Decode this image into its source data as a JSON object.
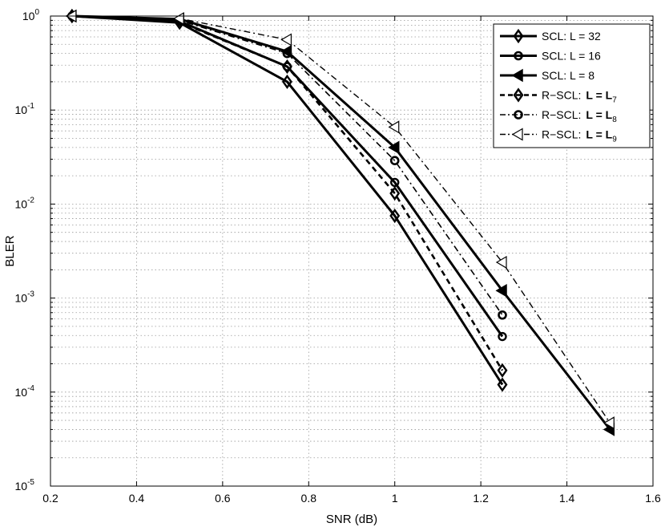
{
  "chart_data": {
    "type": "line",
    "title": "",
    "xlabel": "SNR (dB)",
    "ylabel": "BLER",
    "xlim": [
      0.2,
      1.6
    ],
    "ylim": [
      1e-05,
      1
    ],
    "yscale": "log",
    "grid": true,
    "legend_position": "top-right",
    "x_ticks": [
      "0.2",
      "0.4",
      "0.6",
      "0.8",
      "1",
      "1.2",
      "1.4",
      "1.6"
    ],
    "y_ticks": [
      {
        "base": "10",
        "exp": "0"
      },
      {
        "base": "10",
        "exp": "-1"
      },
      {
        "base": "10",
        "exp": "-2"
      },
      {
        "base": "10",
        "exp": "-3"
      },
      {
        "base": "10",
        "exp": "-4"
      },
      {
        "base": "10",
        "exp": "-5"
      }
    ],
    "series": [
      {
        "name": "SCL: L = 32",
        "line": "solid",
        "marker": "diamond",
        "x": [
          0.25,
          0.5,
          0.75,
          1.0,
          1.25
        ],
        "y": [
          1.0,
          0.85,
          0.2,
          0.0075,
          0.00012
        ]
      },
      {
        "name": "SCL: L = 16",
        "line": "solid",
        "marker": "circle",
        "x": [
          0.25,
          0.5,
          0.75,
          1.0,
          1.25
        ],
        "y": [
          1.0,
          0.88,
          0.29,
          0.017,
          0.00039
        ]
      },
      {
        "name": "SCL: L = 8",
        "line": "solid",
        "marker": "triangle-left",
        "x": [
          0.25,
          0.5,
          0.75,
          1.0,
          1.25,
          1.5
        ],
        "y": [
          1.0,
          0.93,
          0.42,
          0.04,
          0.0012,
          4e-05
        ]
      },
      {
        "name": "R−SCL:",
        "name_bold": "L = L",
        "name_sub": "7",
        "line": "dashed",
        "marker": "diamond",
        "x": [
          0.25,
          0.5,
          0.75,
          1.0,
          1.25
        ],
        "y": [
          1.0,
          0.86,
          0.29,
          0.013,
          0.00017
        ]
      },
      {
        "name": "R−SCL:",
        "name_bold": "L = L",
        "name_sub": "8",
        "line": "dashdot",
        "marker": "circle",
        "x": [
          0.25,
          0.5,
          0.75,
          1.0,
          1.25
        ],
        "y": [
          1.0,
          0.9,
          0.4,
          0.029,
          0.00066
        ]
      },
      {
        "name": "R−SCL:",
        "name_bold": "L = L",
        "name_sub": "9",
        "line": "dashdot",
        "marker": "triangle-left-open",
        "x": [
          0.25,
          0.5,
          0.75,
          1.0,
          1.25,
          1.5
        ],
        "y": [
          1.0,
          0.94,
          0.56,
          0.066,
          0.0024,
          4.7e-05
        ]
      }
    ]
  }
}
